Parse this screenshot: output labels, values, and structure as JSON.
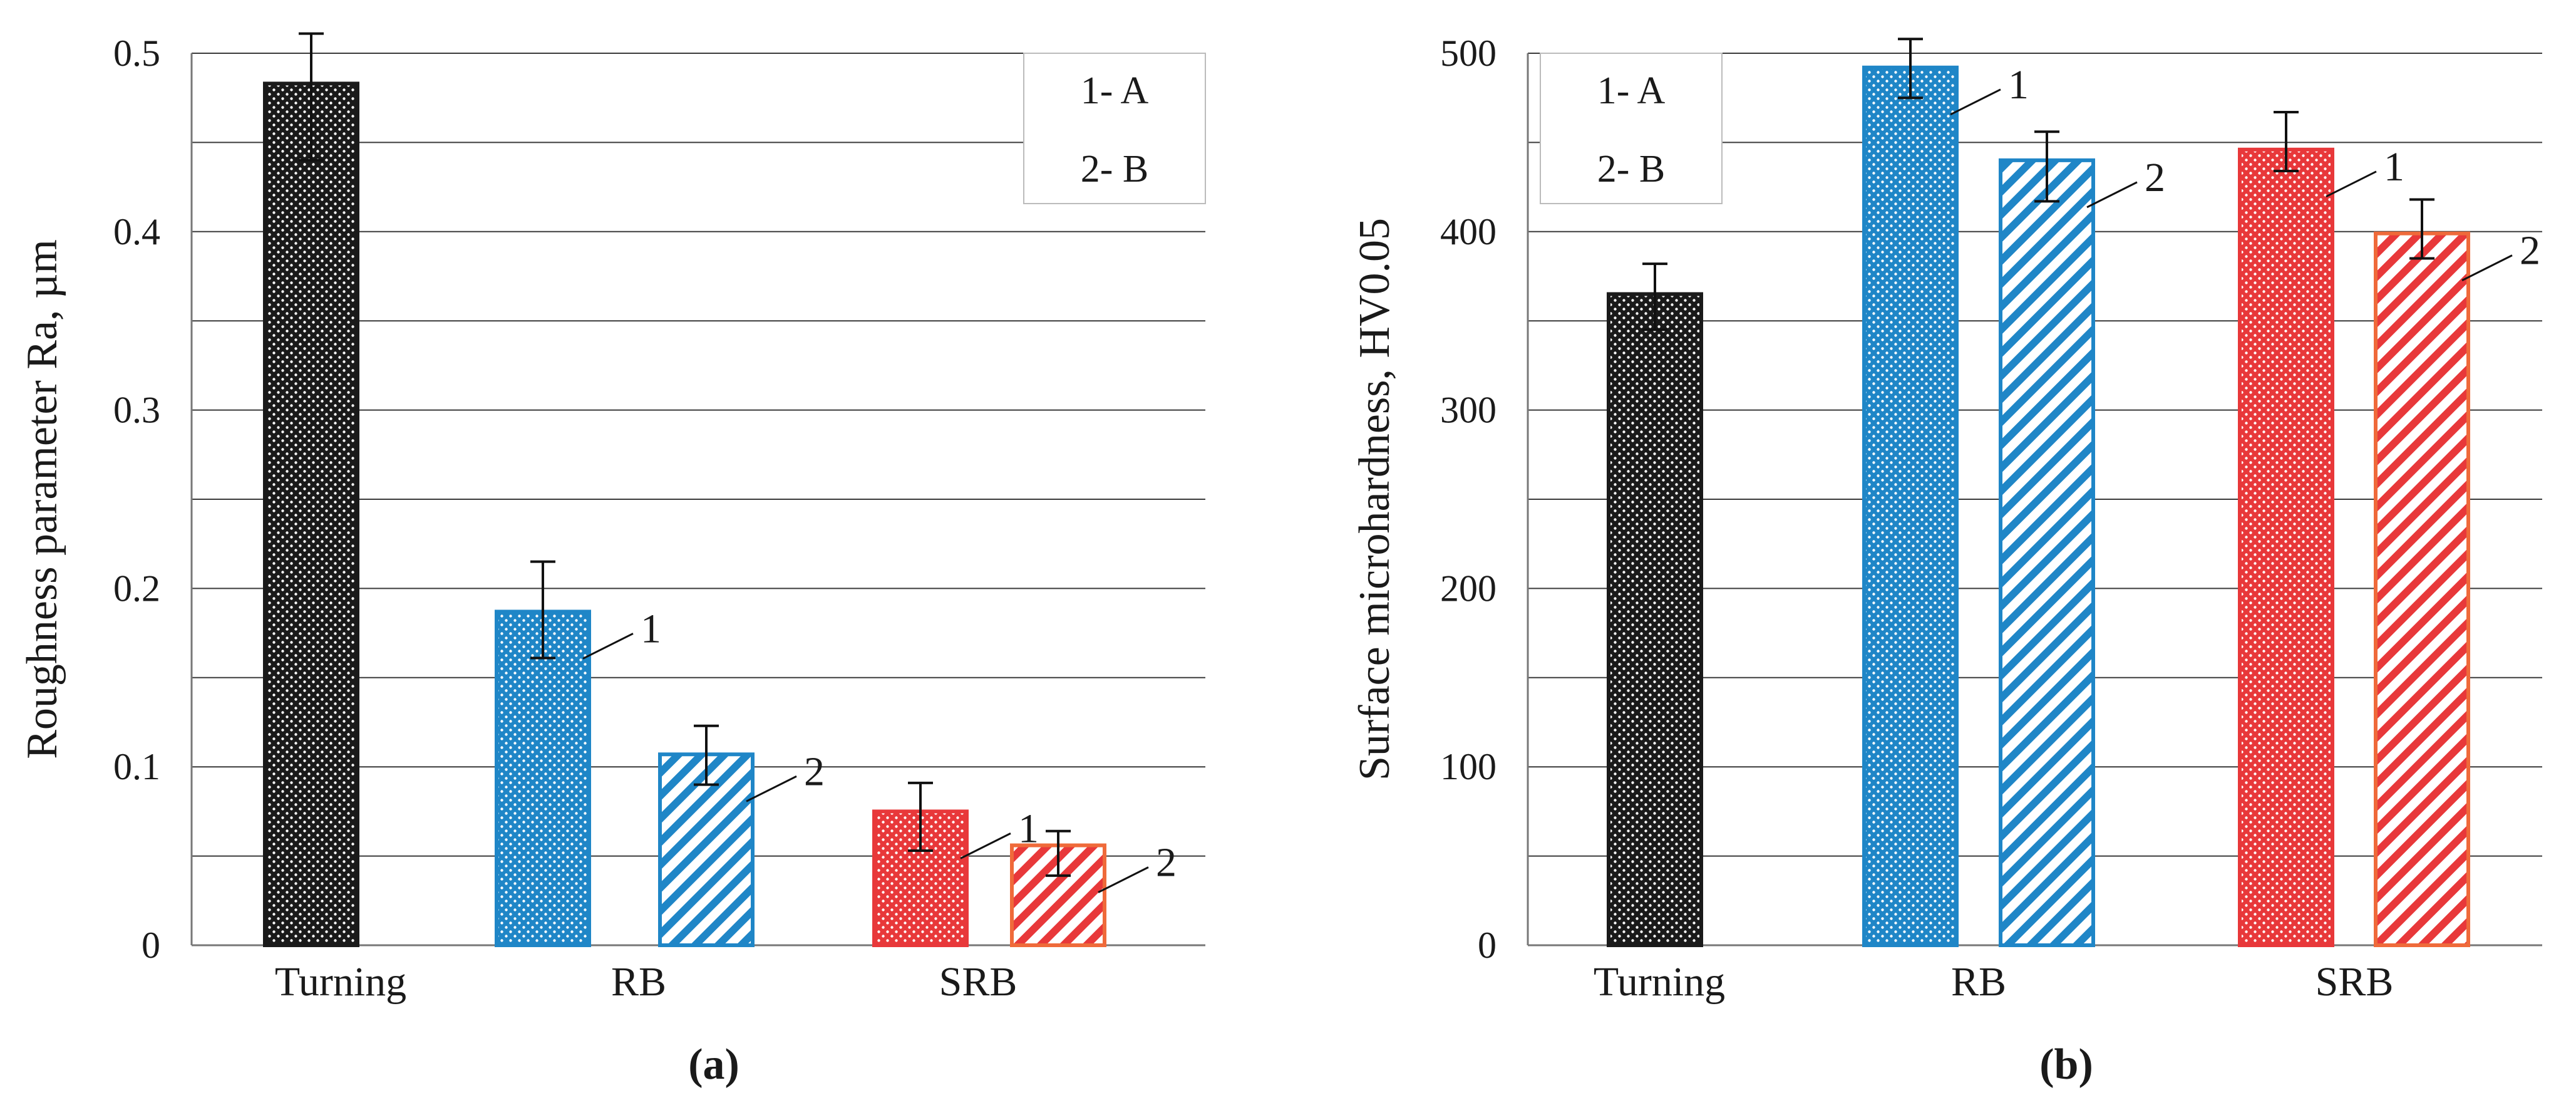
{
  "colors": {
    "black": "#1a1a1a",
    "blue": "#1f86c7",
    "red": "#e8383a",
    "red_outline_b": "#ef6a3a",
    "grid": "#3a3a3a",
    "axis": "#777777"
  },
  "chart_data": [
    {
      "type": "bar",
      "panel": "(a)",
      "ylabel": "Roughness parameter Ra, µm",
      "ylim": [
        0,
        0.5
      ],
      "yticks": [
        0,
        0.1,
        0.2,
        0.3,
        0.4,
        0.5
      ],
      "ytick_labels": [
        "0",
        "0.1",
        "0.2",
        "0.3",
        "0.4",
        "0.5"
      ],
      "gridlines": [
        0.05,
        0.1,
        0.15,
        0.2,
        0.25,
        0.3,
        0.35,
        0.4,
        0.45,
        0.5
      ],
      "categories": [
        "Turning",
        "RB",
        "SRB"
      ],
      "legend": {
        "position": "top-right",
        "entries": [
          "1- A",
          "2- B"
        ]
      },
      "bars": [
        {
          "category": "Turning",
          "value": 0.483,
          "err_low": 0.44,
          "err_high": 0.511,
          "series": "turning",
          "label": ""
        },
        {
          "category": "RB",
          "value": 0.187,
          "err_low": 0.161,
          "err_high": 0.215,
          "series": "A",
          "label": "1"
        },
        {
          "category": "RB",
          "value": 0.107,
          "err_low": 0.09,
          "err_high": 0.123,
          "series": "B",
          "label": "2"
        },
        {
          "category": "SRB",
          "value": 0.075,
          "err_low": 0.053,
          "err_high": 0.091,
          "series": "A",
          "label": "1"
        },
        {
          "category": "SRB",
          "value": 0.056,
          "err_low": 0.039,
          "err_high": 0.064,
          "series": "B",
          "label": "2"
        }
      ]
    },
    {
      "type": "bar",
      "panel": "(b)",
      "ylabel": "Surface microhardness, HV0.05",
      "ylim": [
        0,
        500
      ],
      "yticks": [
        0,
        100,
        200,
        300,
        400,
        500
      ],
      "ytick_labels": [
        "0",
        "100",
        "200",
        "300",
        "400",
        "500"
      ],
      "gridlines": [
        50,
        100,
        150,
        200,
        250,
        300,
        350,
        400,
        450,
        500
      ],
      "categories": [
        "Turning",
        "RB",
        "SRB"
      ],
      "legend": {
        "position": "top-left",
        "entries": [
          "1- A",
          "2- B"
        ]
      },
      "bars": [
        {
          "category": "Turning",
          "value": 365,
          "err_low": 345,
          "err_high": 382,
          "series": "turning",
          "label": ""
        },
        {
          "category": "RB",
          "value": 492,
          "err_low": 475,
          "err_high": 508,
          "series": "A",
          "label": "1"
        },
        {
          "category": "RB",
          "value": 440,
          "err_low": 417,
          "err_high": 456,
          "series": "B",
          "label": "2"
        },
        {
          "category": "SRB",
          "value": 446,
          "err_low": 434,
          "err_high": 467,
          "series": "A",
          "label": "1"
        },
        {
          "category": "SRB",
          "value": 399,
          "err_low": 385,
          "err_high": 418,
          "series": "B",
          "label": "2"
        }
      ]
    }
  ]
}
